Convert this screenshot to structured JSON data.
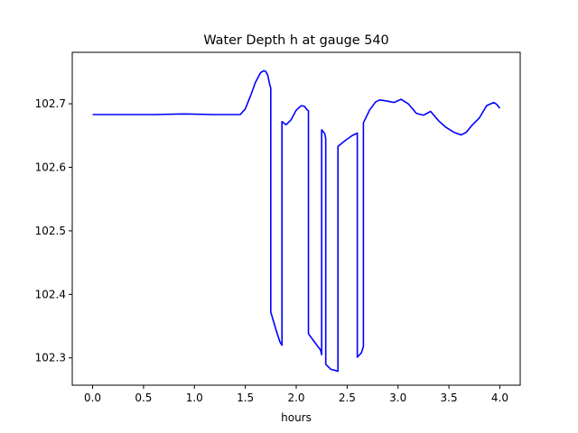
{
  "chart_data": {
    "type": "line",
    "title": "Water Depth h at gauge 540",
    "xlabel": "hours",
    "ylabel": "",
    "xlim": [
      -0.2,
      4.2
    ],
    "ylim": [
      102.257,
      102.781
    ],
    "grid": false,
    "x_ticks": [
      0.0,
      0.5,
      1.0,
      1.5,
      2.0,
      2.5,
      3.0,
      3.5,
      4.0
    ],
    "x_tick_labels": [
      "0.0",
      "0.5",
      "1.0",
      "1.5",
      "2.0",
      "2.5",
      "3.0",
      "3.5",
      "4.0"
    ],
    "y_ticks": [
      102.3,
      102.4,
      102.5,
      102.6,
      102.7
    ],
    "y_tick_labels": [
      "102.3",
      "102.4",
      "102.5",
      "102.6",
      "102.7"
    ],
    "series": [
      {
        "name": "",
        "color": "#0000ff",
        "x": [
          0.0,
          0.3,
          0.6,
          0.9,
          1.2,
          1.45,
          1.5,
          1.55,
          1.6,
          1.65,
          1.68,
          1.7,
          1.72,
          1.74,
          1.75,
          1.75,
          1.8,
          1.84,
          1.86,
          1.86,
          1.9,
          1.95,
          2.0,
          2.05,
          2.08,
          2.11,
          2.12,
          2.12,
          2.18,
          2.24,
          2.25,
          2.25,
          2.28,
          2.29,
          2.29,
          2.34,
          2.39,
          2.4,
          2.41,
          2.41,
          2.48,
          2.55,
          2.59,
          2.6,
          2.6,
          2.64,
          2.66,
          2.66,
          2.72,
          2.78,
          2.82,
          2.9,
          2.96,
          3.03,
          3.1,
          3.18,
          3.25,
          3.32,
          3.4,
          3.47,
          3.55,
          3.62,
          3.67,
          3.72,
          3.8,
          3.87,
          3.94,
          3.97,
          4.0
        ],
        "y": [
          102.683,
          102.683,
          102.683,
          102.684,
          102.683,
          102.683,
          102.692,
          102.712,
          102.734,
          102.749,
          102.752,
          102.751,
          102.745,
          102.73,
          102.725,
          102.372,
          102.345,
          102.325,
          102.32,
          102.672,
          102.667,
          102.675,
          102.69,
          102.697,
          102.696,
          102.69,
          102.689,
          102.338,
          102.325,
          102.312,
          102.305,
          102.659,
          102.653,
          102.645,
          102.29,
          102.282,
          102.28,
          102.279,
          102.279,
          102.633,
          102.642,
          102.65,
          102.653,
          102.654,
          102.301,
          102.308,
          102.318,
          102.67,
          102.69,
          102.703,
          102.706,
          102.704,
          102.702,
          102.707,
          102.7,
          102.685,
          102.682,
          102.688,
          102.673,
          102.663,
          102.655,
          102.651,
          102.655,
          102.665,
          102.678,
          102.697,
          102.702,
          102.699,
          102.693
        ]
      }
    ]
  }
}
